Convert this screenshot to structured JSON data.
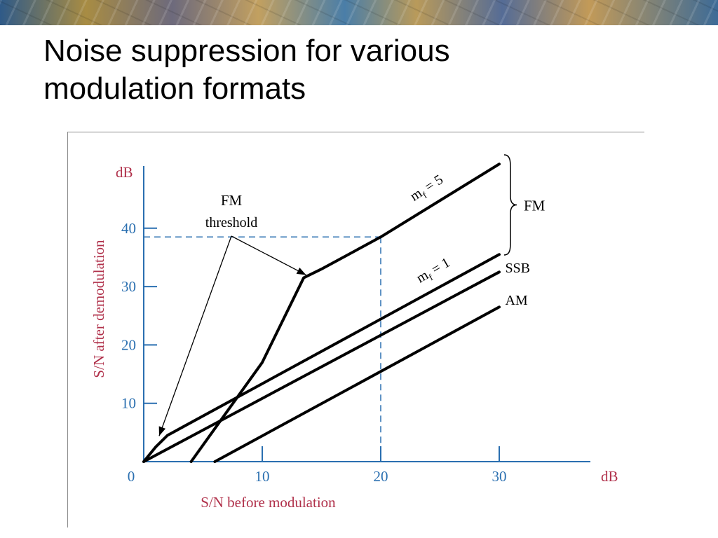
{
  "slide": {
    "title_line1": "Noise suppression for various",
    "title_line2": "modulation formats"
  },
  "chart_data": {
    "type": "line",
    "xlabel": "S/N before modulation",
    "ylabel": "S/N after demodulation",
    "x_unit": "dB",
    "y_unit": "dB",
    "xlim": [
      0,
      30
    ],
    "ylim": [
      0,
      50
    ],
    "x_ticks": [
      0,
      10,
      20,
      30
    ],
    "x_tick_labels": [
      "0",
      "10",
      "20",
      "30"
    ],
    "y_ticks": [
      10,
      20,
      30,
      40
    ],
    "y_tick_labels": [
      "10",
      "20",
      "30",
      "40"
    ],
    "grid": false,
    "series": [
      {
        "name": "m_f = 5",
        "x": [
          4,
          10,
          13.5,
          15,
          20,
          30
        ],
        "y": [
          0,
          17,
          31.5,
          33,
          38.5,
          51
        ]
      },
      {
        "name": "m_f = 1",
        "x": [
          0,
          1,
          2,
          30
        ],
        "y": [
          0,
          2.5,
          4.5,
          35.5
        ]
      },
      {
        "name": "SSB",
        "x": [
          0,
          30
        ],
        "y": [
          0,
          32.5
        ]
      },
      {
        "name": "AM",
        "x": [
          6,
          30
        ],
        "y": [
          0,
          26.5
        ]
      }
    ],
    "annotations": {
      "fm_brace_label": "FM",
      "mf5_prefix": "m",
      "mf5_sub": "f",
      "mf5_rest": " = 5",
      "mf1_prefix": "m",
      "mf1_sub": "f",
      "mf1_rest": " = 1",
      "ssb_label": "SSB",
      "am_label": "AM",
      "threshold_line1": "FM",
      "threshold_line2": "threshold",
      "reference_x": 20,
      "reference_y": 38.5
    },
    "colors": {
      "axis": "#2a6fb0",
      "axis_label": "#b0304a",
      "curve": "#000000"
    }
  }
}
